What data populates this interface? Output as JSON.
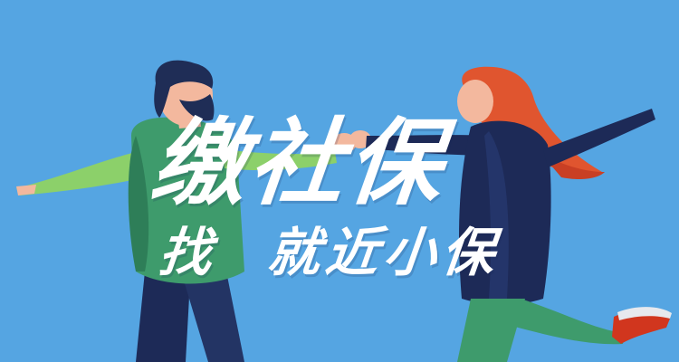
{
  "banner": {
    "headline": "缴社保",
    "tagline_left": "找",
    "tagline_right": "就近小保"
  },
  "colors": {
    "background": "#55A5E2",
    "text": "#FFFFFF",
    "hair_man": "#1F2D56",
    "hair_woman": "#E0552F",
    "top_man": "#3E9B6C",
    "top_woman": "#1D2A57",
    "skin": "#F3B89E"
  }
}
